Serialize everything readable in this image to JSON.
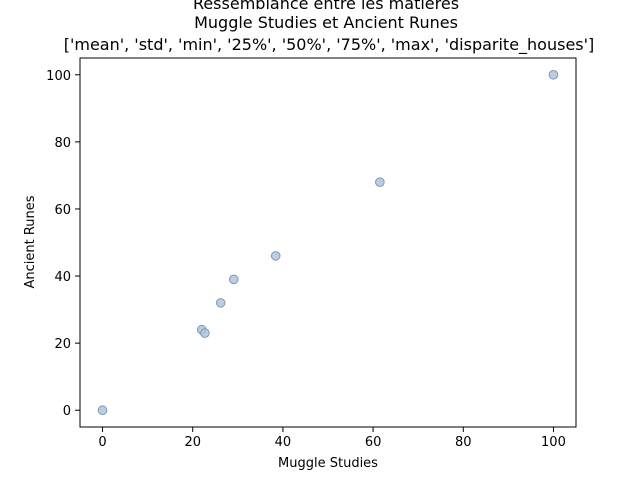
{
  "chart_data": {
    "type": "scatter",
    "title_lines": [
      "Ressemblance entre les matières",
      "Muggle Studies et Ancient Runes",
      "['mean', 'std', 'min', '25%', '50%', '75%', 'max', 'disparite_houses']"
    ],
    "xlabel": "Muggle Studies",
    "ylabel": "Ancient Runes",
    "xlim": [
      -5,
      105
    ],
    "ylim": [
      -5,
      105
    ],
    "xticks": [
      0,
      20,
      40,
      60,
      80,
      100
    ],
    "yticks": [
      0,
      20,
      40,
      60,
      80,
      100
    ],
    "grid": false,
    "marker_color": "#b0c4de",
    "marker_edge_color": "#7f98b0",
    "points": [
      {
        "x": 0,
        "y": 0
      },
      {
        "x": 22,
        "y": 24
      },
      {
        "x": 22.7,
        "y": 23
      },
      {
        "x": 26.2,
        "y": 32
      },
      {
        "x": 29.1,
        "y": 39
      },
      {
        "x": 38.4,
        "y": 46
      },
      {
        "x": 61.5,
        "y": 68
      },
      {
        "x": 100,
        "y": 100
      }
    ]
  }
}
